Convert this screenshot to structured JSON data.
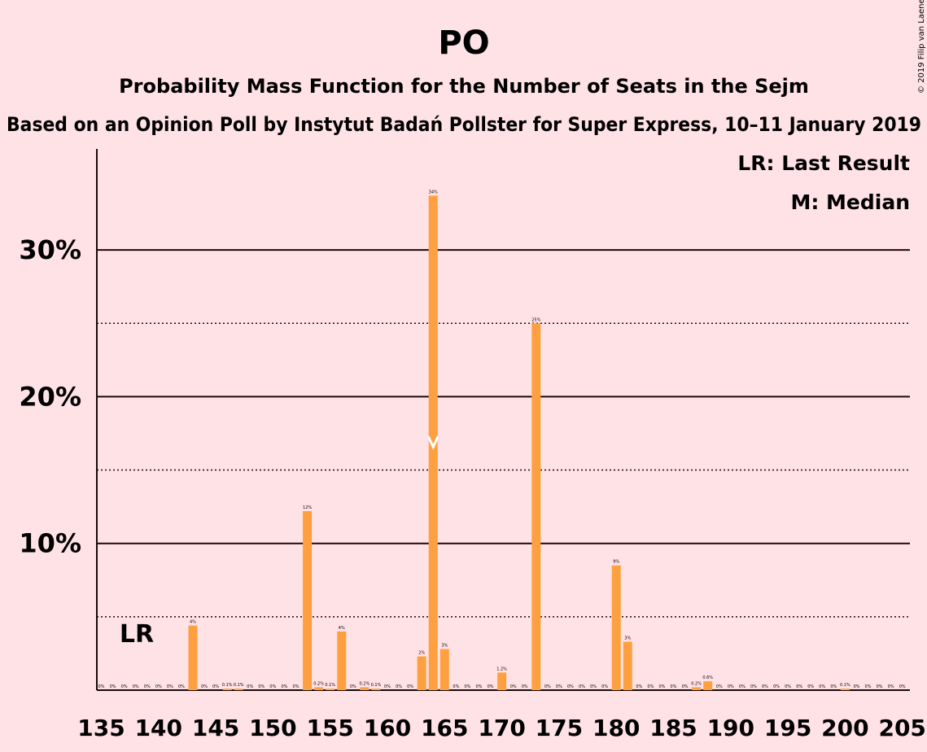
{
  "chart_data": {
    "type": "bar",
    "title": "PO",
    "subtitle": "Probability Mass Function for the Number of Seats in the Sejm",
    "subtitle2": "Based on an Opinion Poll by Instytut Badań Pollster for Super Express, 10–11 January 2019",
    "copyright": "© 2019 Filip van Laenen",
    "legend": [
      "LR: Last Result",
      "M: Median"
    ],
    "legend_position": "top-right",
    "last_result_label": "LR",
    "last_result_seat": 138,
    "median_seat": 164,
    "median_label": "M",
    "bar_color": "#ffa040",
    "x": [
      135,
      136,
      137,
      138,
      139,
      140,
      141,
      142,
      143,
      144,
      145,
      146,
      147,
      148,
      149,
      150,
      151,
      152,
      153,
      154,
      155,
      156,
      157,
      158,
      159,
      160,
      161,
      162,
      163,
      164,
      165,
      166,
      167,
      168,
      169,
      170,
      171,
      172,
      173,
      174,
      175,
      176,
      177,
      178,
      179,
      180,
      181,
      182,
      183,
      184,
      185,
      186,
      187,
      188,
      189,
      190,
      191,
      192,
      193,
      194,
      195,
      196,
      197,
      198,
      199,
      200,
      201,
      202,
      203,
      204,
      205
    ],
    "values": [
      0,
      0,
      0,
      0,
      0,
      0,
      0,
      0,
      4.4,
      0,
      0,
      0.1,
      0.1,
      0,
      0,
      0,
      0,
      0,
      12.2,
      0.2,
      0.1,
      4.0,
      0,
      0.2,
      0.1,
      0,
      0,
      0,
      2.3,
      33.7,
      2.8,
      0,
      0,
      0,
      0,
      1.2,
      0,
      0,
      25.0,
      0,
      0,
      0,
      0,
      0,
      0,
      8.5,
      3.3,
      0,
      0,
      0,
      0,
      0,
      0.2,
      0.6,
      0,
      0,
      0,
      0,
      0,
      0,
      0,
      0,
      0,
      0,
      0,
      0.1,
      0,
      0,
      0,
      0,
      0
    ],
    "labels": [
      "0%",
      "0%",
      "0%",
      "0%",
      "0%",
      "0%",
      "0%",
      "0%",
      "4%",
      "0%",
      "0%",
      "0.1%",
      "0.1%",
      "0%",
      "0%",
      "0%",
      "0%",
      "0%",
      "12%",
      "0.2%",
      "0.1%",
      "4%",
      "0%",
      "0.2%",
      "0.1%",
      "0%",
      "0%",
      "0%",
      "2%",
      "34%",
      "3%",
      "0%",
      "0%",
      "0%",
      "0%",
      "1.2%",
      "0%",
      "0%",
      "25%",
      "0%",
      "0%",
      "0%",
      "0%",
      "0%",
      "0%",
      "9%",
      "3%",
      "0%",
      "0%",
      "0%",
      "0%",
      "0%",
      "0.2%",
      "0.6%",
      "0%",
      "0%",
      "0%",
      "0%",
      "0%",
      "0%",
      "0%",
      "0%",
      "0%",
      "0%",
      "0%",
      "0.1%",
      "0%",
      "0%",
      "0%",
      "0%",
      "0%"
    ],
    "xticks": [
      "135",
      "140",
      "145",
      "150",
      "155",
      "160",
      "165",
      "170",
      "175",
      "180",
      "185",
      "190",
      "195",
      "200",
      "205"
    ],
    "yticks": [
      {
        "value": 10,
        "label": "10%"
      },
      {
        "value": 20,
        "label": "20%"
      },
      {
        "value": 30,
        "label": "30%"
      }
    ],
    "dotted_lines": [
      5,
      15,
      25
    ],
    "ylim": [
      0,
      37
    ],
    "xlim": [
      135,
      205
    ],
    "grid": true
  }
}
